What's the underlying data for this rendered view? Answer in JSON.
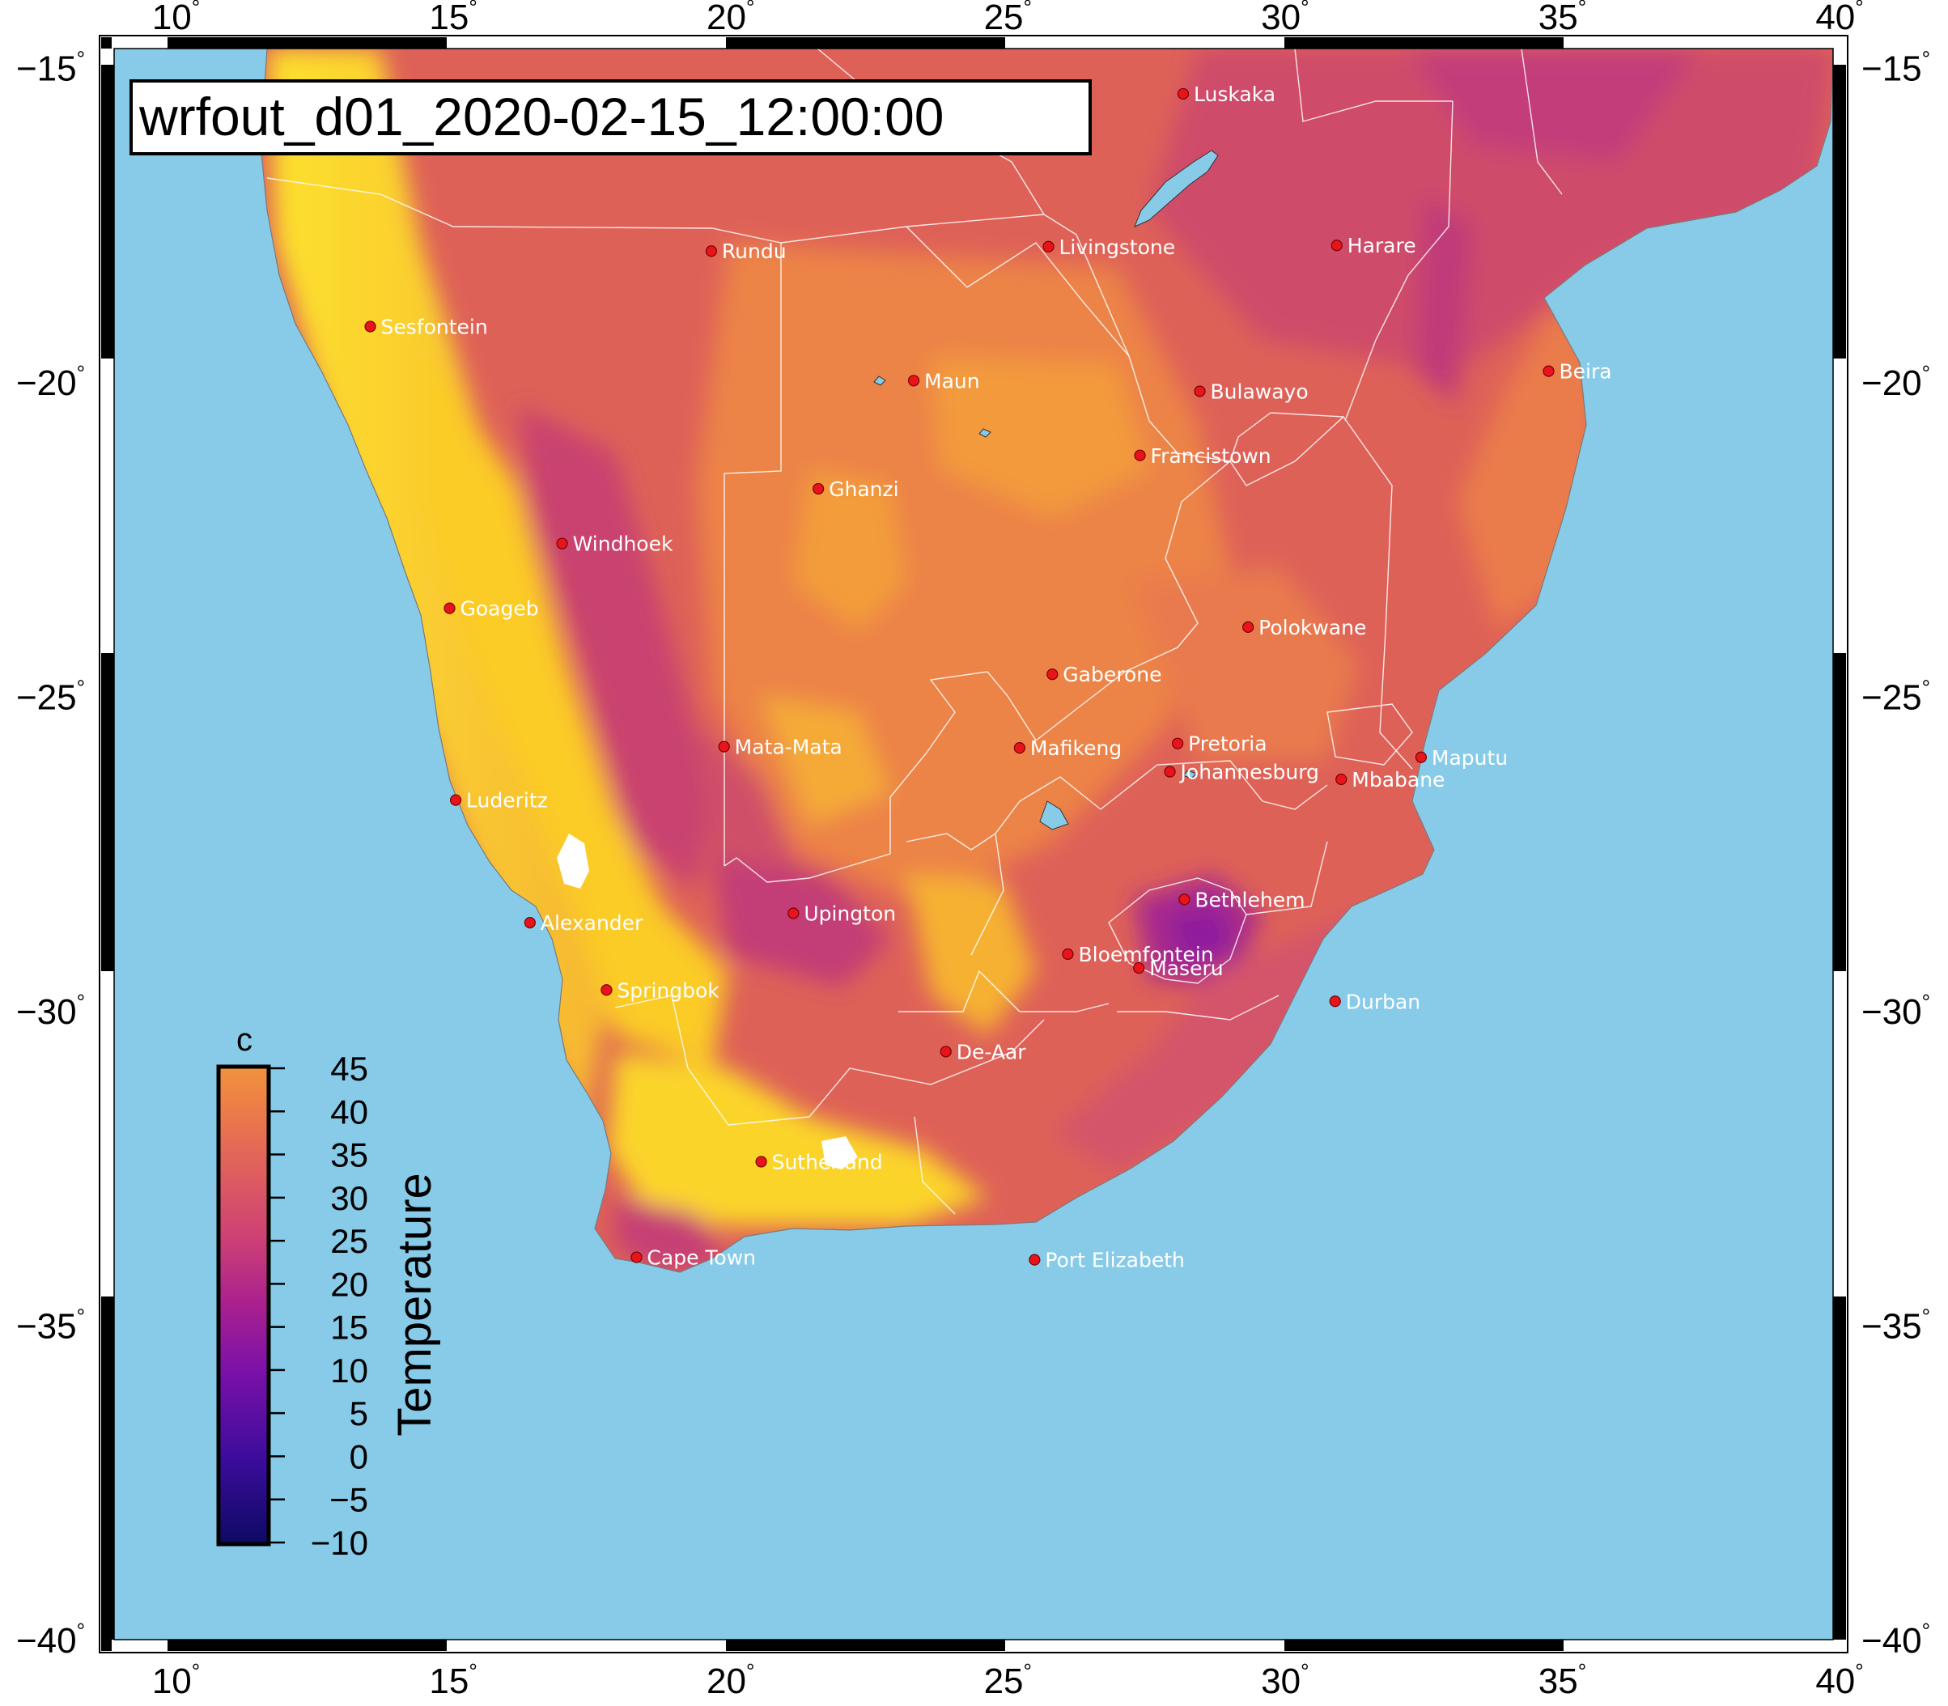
{
  "map": {
    "title": "wrfout_d01_2020-02-15_12:00:00",
    "extent": {
      "lon_min": 9,
      "lon_max": 40,
      "lat_min": -40,
      "lat_max": -14.7
    },
    "lon_ticks": [
      10,
      15,
      20,
      25,
      30,
      35,
      40
    ],
    "lat_ticks": [
      -15,
      -20,
      -25,
      -30,
      -35,
      -40
    ],
    "degree_symbol": "°",
    "minus_sign": "−",
    "ocean_color": "#87cbe9",
    "border_color": "#ffffff"
  },
  "colorbar": {
    "title": "Temperature",
    "unit": "c",
    "ticks": [
      45,
      40,
      35,
      30,
      25,
      20,
      15,
      10,
      5,
      0,
      -5,
      -10
    ],
    "min": -10,
    "max": 45,
    "palette": [
      "#1b0c6d",
      "#3e0e9a",
      "#6a0fa8",
      "#9315a4",
      "#b52a8e",
      "#cc3f7b",
      "#dc5766",
      "#e8704f",
      "#f08f3e",
      "#f8b02a",
      "#fdd21f",
      "#fef236"
    ]
  },
  "cities": [
    {
      "name": "Luskaka",
      "lon": 28.28,
      "lat": -15.42
    },
    {
      "name": "Rundu",
      "lon": 19.77,
      "lat": -17.92
    },
    {
      "name": "Livingstone",
      "lon": 25.85,
      "lat": -17.85
    },
    {
      "name": "Harare",
      "lon": 31.05,
      "lat": -17.83
    },
    {
      "name": "Sesfontein",
      "lon": 13.62,
      "lat": -19.12
    },
    {
      "name": "Beira",
      "lon": 34.87,
      "lat": -19.83
    },
    {
      "name": "Maun",
      "lon": 23.42,
      "lat": -19.98
    },
    {
      "name": "Bulawayo",
      "lon": 28.58,
      "lat": -20.15
    },
    {
      "name": "Francistown",
      "lon": 27.5,
      "lat": -21.17
    },
    {
      "name": "Ghanzi",
      "lon": 21.7,
      "lat": -21.7
    },
    {
      "name": "Windhoek",
      "lon": 17.08,
      "lat": -22.57
    },
    {
      "name": "Goageb",
      "lon": 15.05,
      "lat": -23.6
    },
    {
      "name": "Polokwane",
      "lon": 29.45,
      "lat": -23.9
    },
    {
      "name": "Gaberone",
      "lon": 25.92,
      "lat": -24.65
    },
    {
      "name": "Mata-Mata",
      "lon": 20.0,
      "lat": -25.8
    },
    {
      "name": "Mafikeng",
      "lon": 25.33,
      "lat": -25.82
    },
    {
      "name": "Pretoria",
      "lon": 28.18,
      "lat": -25.75
    },
    {
      "name": "Maputu",
      "lon": 32.57,
      "lat": -25.97
    },
    {
      "name": "Johannesburg",
      "lon": 28.04,
      "lat": -26.2
    },
    {
      "name": "Mbabane",
      "lon": 31.13,
      "lat": -26.32
    },
    {
      "name": "Luderitz",
      "lon": 15.16,
      "lat": -26.65
    },
    {
      "name": "Bethlehem",
      "lon": 28.3,
      "lat": -28.23
    },
    {
      "name": "Alexander",
      "lon": 16.5,
      "lat": -28.6
    },
    {
      "name": "Upington",
      "lon": 21.25,
      "lat": -28.45
    },
    {
      "name": "Bloemfontein",
      "lon": 26.2,
      "lat": -29.1
    },
    {
      "name": "Maseru",
      "lon": 27.48,
      "lat": -29.32
    },
    {
      "name": "Durban",
      "lon": 31.02,
      "lat": -29.85
    },
    {
      "name": "Springbok",
      "lon": 17.88,
      "lat": -29.67
    },
    {
      "name": "De-Aar",
      "lon": 24.0,
      "lat": -30.65
    },
    {
      "name": "Sutherland",
      "lon": 20.67,
      "lat": -32.4
    },
    {
      "name": "Cape Town",
      "lon": 18.42,
      "lat": -33.92
    },
    {
      "name": "Port Elizabeth",
      "lon": 25.6,
      "lat": -33.96
    }
  ]
}
